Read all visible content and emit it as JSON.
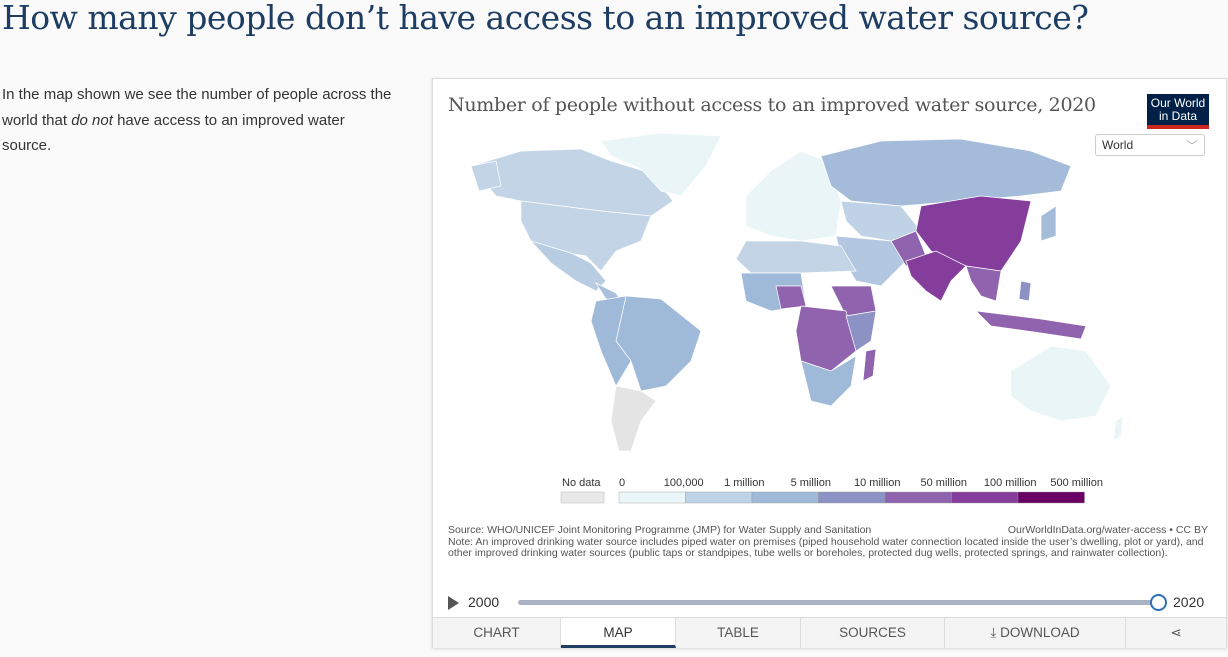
{
  "page_title": "How many people don’t have access to an improved water source?",
  "intro": {
    "before": "In the map shown we see the number of people across the world that ",
    "emphasis": "do not",
    "after": " have access to an improved water source."
  },
  "chart": {
    "title": "Number of people without access to an improved water source, 2020",
    "logo": {
      "line1": "Our World",
      "line2": "in Data"
    },
    "region_select": "World",
    "legend": {
      "no_data": "No data",
      "labels": [
        "0",
        "100,000",
        "1 million",
        "5 million",
        "10 million",
        "50 million",
        "100 million",
        "500 million"
      ],
      "colors": [
        "#eaf5f7",
        "#bfd3e6",
        "#9fb9d8",
        "#8c92c4",
        "#8f63ae",
        "#853d9c",
        "#6a0065"
      ],
      "no_data_color": "#e8e8e8"
    },
    "source": "Source: WHO/UNICEF Joint Monitoring Programme (JMP) for Water Supply and Sanitation",
    "url": "OurWorldInData.org/water-access • CC BY",
    "note": "Note: An improved drinking water source includes piped water on premises (piped household water connection located inside the user’s dwelling, plot or yard), and other improved drinking water sources (public taps or standpipes, tube wells or boreholes, protected dug wells, protected springs, and rainwater collection).",
    "timeline": {
      "start": "2000",
      "end": "2020",
      "selected": "2020"
    },
    "tabs": [
      "CHART",
      "MAP",
      "TABLE",
      "SOURCES",
      "DOWNLOAD"
    ],
    "active_tab": "MAP",
    "icons": {
      "play": "play-icon",
      "download": "download-icon",
      "share": "share-icon",
      "dropdown": "chevron-down-icon"
    }
  }
}
